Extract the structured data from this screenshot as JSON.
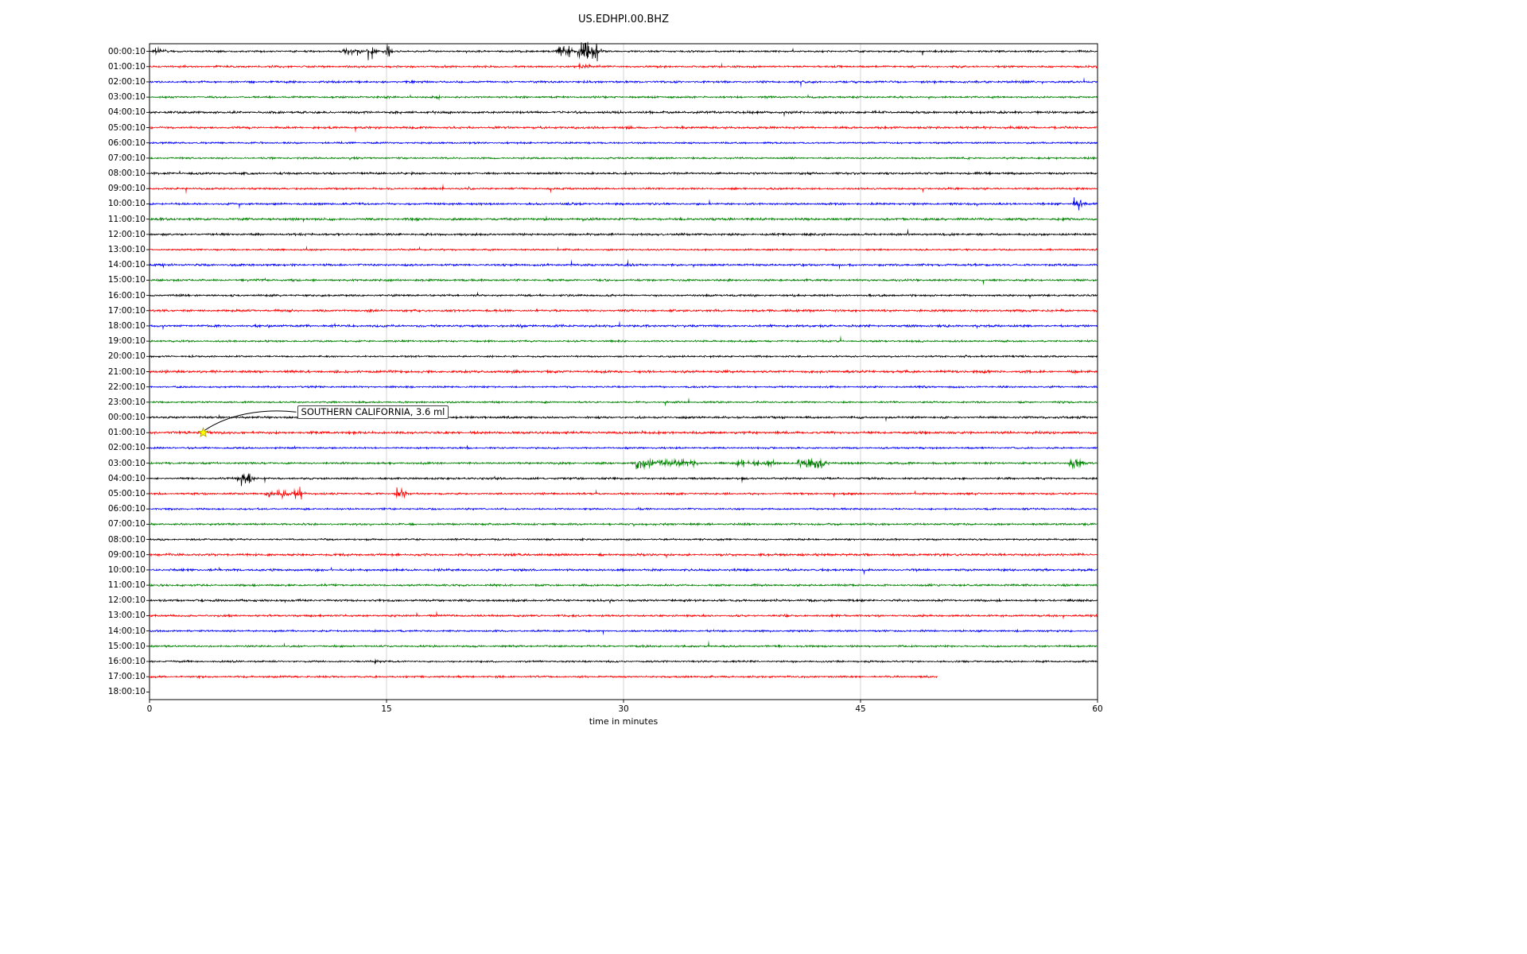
{
  "title": "US.EDHPI.00.BHZ",
  "chart_data": {
    "type": "line",
    "subtype": "seismogram-dayplot",
    "station": "US.EDHPI.00.BHZ",
    "xlabel": "time in minutes",
    "xlim": [
      0,
      60
    ],
    "x_ticks": [
      "0",
      "15",
      "30",
      "45",
      "60"
    ],
    "grid_minutes": [
      15,
      30,
      45
    ],
    "trace_color_cycle": [
      "#000000",
      "#ff0000",
      "#0000ff",
      "#008000"
    ],
    "rows": [
      {
        "label": "00:00:10",
        "color": "#000000",
        "end_minute": 60
      },
      {
        "label": "01:00:10",
        "color": "#ff0000",
        "end_minute": 60
      },
      {
        "label": "02:00:10",
        "color": "#0000ff",
        "end_minute": 60
      },
      {
        "label": "03:00:10",
        "color": "#008000",
        "end_minute": 60
      },
      {
        "label": "04:00:10",
        "color": "#000000",
        "end_minute": 60
      },
      {
        "label": "05:00:10",
        "color": "#ff0000",
        "end_minute": 60
      },
      {
        "label": "06:00:10",
        "color": "#0000ff",
        "end_minute": 60
      },
      {
        "label": "07:00:10",
        "color": "#008000",
        "end_minute": 60
      },
      {
        "label": "08:00:10",
        "color": "#000000",
        "end_minute": 60
      },
      {
        "label": "09:00:10",
        "color": "#ff0000",
        "end_minute": 60
      },
      {
        "label": "10:00:10",
        "color": "#0000ff",
        "end_minute": 60
      },
      {
        "label": "11:00:10",
        "color": "#008000",
        "end_minute": 60
      },
      {
        "label": "12:00:10",
        "color": "#000000",
        "end_minute": 60
      },
      {
        "label": "13:00:10",
        "color": "#ff0000",
        "end_minute": 60
      },
      {
        "label": "14:00:10",
        "color": "#0000ff",
        "end_minute": 60
      },
      {
        "label": "15:00:10",
        "color": "#008000",
        "end_minute": 60
      },
      {
        "label": "16:00:10",
        "color": "#000000",
        "end_minute": 60
      },
      {
        "label": "17:00:10",
        "color": "#ff0000",
        "end_minute": 60
      },
      {
        "label": "18:00:10",
        "color": "#0000ff",
        "end_minute": 60
      },
      {
        "label": "19:00:10",
        "color": "#008000",
        "end_minute": 60
      },
      {
        "label": "20:00:10",
        "color": "#000000",
        "end_minute": 60
      },
      {
        "label": "21:00:10",
        "color": "#ff0000",
        "end_minute": 60
      },
      {
        "label": "22:00:10",
        "color": "#0000ff",
        "end_minute": 60
      },
      {
        "label": "23:00:10",
        "color": "#008000",
        "end_minute": 60
      },
      {
        "label": "00:00:10",
        "color": "#000000",
        "end_minute": 60
      },
      {
        "label": "01:00:10",
        "color": "#ff0000",
        "end_minute": 60
      },
      {
        "label": "02:00:10",
        "color": "#0000ff",
        "end_minute": 60
      },
      {
        "label": "03:00:10",
        "color": "#008000",
        "end_minute": 60
      },
      {
        "label": "04:00:10",
        "color": "#000000",
        "end_minute": 60
      },
      {
        "label": "05:00:10",
        "color": "#ff0000",
        "end_minute": 60
      },
      {
        "label": "06:00:10",
        "color": "#0000ff",
        "end_minute": 60
      },
      {
        "label": "07:00:10",
        "color": "#008000",
        "end_minute": 60
      },
      {
        "label": "08:00:10",
        "color": "#000000",
        "end_minute": 60
      },
      {
        "label": "09:00:10",
        "color": "#ff0000",
        "end_minute": 60
      },
      {
        "label": "10:00:10",
        "color": "#0000ff",
        "end_minute": 60
      },
      {
        "label": "11:00:10",
        "color": "#008000",
        "end_minute": 60
      },
      {
        "label": "12:00:10",
        "color": "#000000",
        "end_minute": 60
      },
      {
        "label": "13:00:10",
        "color": "#ff0000",
        "end_minute": 60
      },
      {
        "label": "14:00:10",
        "color": "#0000ff",
        "end_minute": 60
      },
      {
        "label": "15:00:10",
        "color": "#008000",
        "end_minute": 60
      },
      {
        "label": "16:00:10",
        "color": "#000000",
        "end_minute": 60
      },
      {
        "label": "17:00:10",
        "color": "#ff0000",
        "end_minute": 49.9
      },
      {
        "label": "18:00:10",
        "color": "#0000ff",
        "end_minute": 0
      }
    ],
    "events": [
      {
        "row": 0,
        "start": 0.2,
        "end": 0.9,
        "amp": 5
      },
      {
        "row": 0,
        "start": 12.3,
        "end": 13.2,
        "amp": 6
      },
      {
        "row": 0,
        "start": 13.8,
        "end": 14.1,
        "amp": 12
      },
      {
        "row": 0,
        "start": 14.9,
        "end": 15.2,
        "amp": 9
      },
      {
        "row": 0,
        "start": 25.8,
        "end": 26.6,
        "amp": 10
      },
      {
        "row": 0,
        "start": 27.2,
        "end": 28.4,
        "amp": 16
      },
      {
        "row": 1,
        "start": 27.3,
        "end": 27.8,
        "amp": 6
      },
      {
        "row": 3,
        "start": 18.1,
        "end": 18.4,
        "amp": 3
      },
      {
        "row": 10,
        "start": 58.5,
        "end": 58.9,
        "amp": 9
      },
      {
        "row": 22,
        "start": 48.7,
        "end": 48.9,
        "amp": 3
      },
      {
        "row": 25,
        "start": 3.3,
        "end": 4.2,
        "amp": 2
      },
      {
        "row": 27,
        "start": 30.8,
        "end": 31.3,
        "amp": 10
      },
      {
        "row": 27,
        "start": 31.3,
        "end": 34.5,
        "amp": 5
      },
      {
        "row": 27,
        "start": 37.2,
        "end": 37.6,
        "amp": 8
      },
      {
        "row": 27,
        "start": 38.0,
        "end": 39.5,
        "amp": 4
      },
      {
        "row": 27,
        "start": 41.0,
        "end": 42.6,
        "amp": 8
      },
      {
        "row": 27,
        "start": 58.3,
        "end": 58.8,
        "amp": 12
      },
      {
        "row": 28,
        "start": 5.6,
        "end": 6.4,
        "amp": 9
      },
      {
        "row": 28,
        "start": 21.8,
        "end": 22.3,
        "amp": 3
      },
      {
        "row": 29,
        "start": 7.4,
        "end": 8.6,
        "amp": 6
      },
      {
        "row": 29,
        "start": 9.1,
        "end": 9.6,
        "amp": 10
      },
      {
        "row": 29,
        "start": 15.6,
        "end": 16.1,
        "amp": 9
      },
      {
        "row": 40,
        "start": 14.1,
        "end": 14.4,
        "amp": 3
      }
    ],
    "annotation": {
      "text": "SOUTHERN CALIFORNIA, 3.6 ml",
      "row_label": "01:00:10",
      "row_index": 25,
      "time_minutes": 3.4,
      "marker": "star",
      "marker_color": "#ffff00"
    }
  }
}
